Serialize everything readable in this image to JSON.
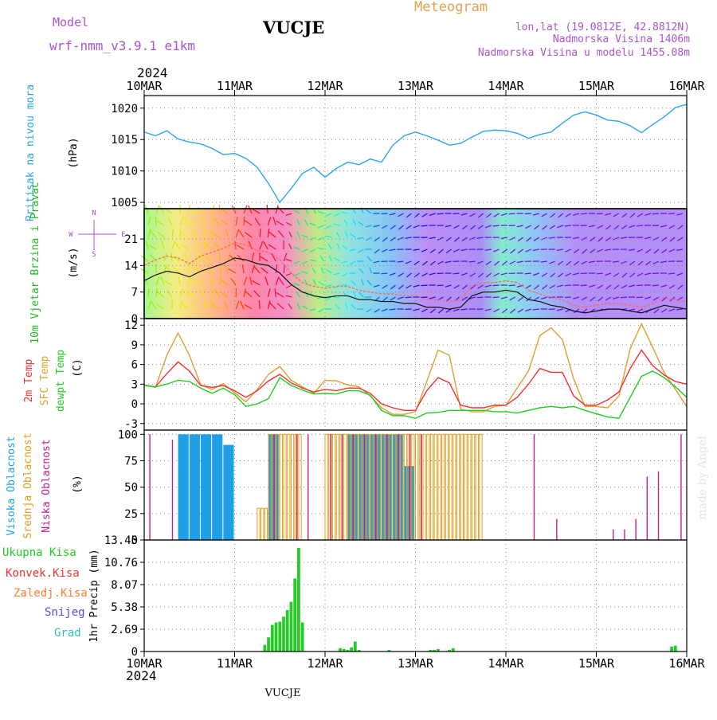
{
  "header": {
    "model_label": "Model",
    "model_name": "wrf-nmm_v3.9.1  e1km",
    "station": "VUCJE",
    "meteogram_label": "Meteogram",
    "lonlat": "lon,lat (19.0812E, 42.8812N)",
    "elevation": "Nadmorska Visina 1406m",
    "model_elevation": "Nadmorska Visina u modelu 1455.08m",
    "year_top": "2024",
    "year_bottom": "2024",
    "footer_station": "VUCJE",
    "credit": "made by Angel"
  },
  "colors": {
    "pressure": "#2aa7e8",
    "temp2m": "#ee3333",
    "sfc": "#dda030",
    "dew": "#22cc22",
    "high_cloud": "#1f9fe6",
    "mid_cloud": "#e0a020",
    "low_cloud": "#c0208a",
    "precip_total": "#22cc22",
    "precip_conv": "#ee3333",
    "precip_large": "#ff8030",
    "snow": "#5050e0",
    "hail": "#30c0c0",
    "model_text": "#aa55cc",
    "meteogram_text": "#e0a050",
    "station_text": "#000000"
  },
  "chart_data": [
    {
      "type": "line",
      "panel": "pressure",
      "ylabel_side": "Pritisak na nivou mora",
      "ylabel_unit": "(hPa)",
      "x_ticks": [
        "10MAR",
        "11MAR",
        "12MAR",
        "13MAR",
        "14MAR",
        "15MAR",
        "16MAR"
      ],
      "y_ticks": [
        1005,
        1010,
        1015,
        1020
      ],
      "ylim": [
        1004,
        1022
      ],
      "grid": true,
      "x_hours": [
        0,
        3,
        6,
        9,
        12,
        15,
        18,
        21,
        24,
        27,
        30,
        33,
        36,
        39,
        42,
        45,
        48,
        51,
        54,
        57,
        60,
        63,
        66,
        69,
        72,
        75,
        78,
        81,
        84,
        87,
        90,
        93,
        96,
        99,
        102,
        105,
        108,
        111,
        114,
        117,
        120,
        123,
        126,
        129,
        132,
        135,
        138,
        141,
        144
      ],
      "series": [
        {
          "values": [
            1016.2,
            1015.6,
            1016.4,
            1015.1,
            1014.6,
            1014.3,
            1013.6,
            1012.6,
            1012.8,
            1012.0,
            1010.6,
            1008.0,
            1005.0,
            1007.2,
            1009.6,
            1010.6,
            1009.0,
            1010.4,
            1011.4,
            1011.0,
            1011.9,
            1011.4,
            1014.1,
            1015.6,
            1016.2,
            1015.6,
            1014.9,
            1014.1,
            1014.4,
            1015.4,
            1016.3,
            1016.5,
            1016.4,
            1016.0,
            1015.2,
            1015.8,
            1016.2,
            1017.6,
            1018.9,
            1019.4,
            1018.9,
            1018.1,
            1017.9,
            1017.2,
            1016.1,
            1017.4,
            1018.6,
            1020.1,
            1020.6
          ]
        }
      ]
    },
    {
      "type": "line",
      "panel": "wind",
      "ylabel_side": "10m Vjetar Brzina i Pravac",
      "ylabel_unit": "(m/s)",
      "compass": [
        "N",
        "E",
        "S",
        "W"
      ],
      "y_ticks": [
        0,
        7,
        14,
        21
      ],
      "ylim": [
        0,
        29
      ],
      "grid": true,
      "x_hours": [
        0,
        3,
        6,
        9,
        12,
        15,
        18,
        21,
        24,
        27,
        30,
        33,
        36,
        39,
        42,
        45,
        48,
        51,
        54,
        57,
        60,
        63,
        66,
        69,
        72,
        75,
        78,
        81,
        84,
        87,
        90,
        93,
        96,
        99,
        102,
        105,
        108,
        111,
        114,
        117,
        120,
        123,
        126,
        129,
        132,
        135,
        138,
        141,
        144
      ],
      "series": [
        {
          "name": "speed",
          "values": [
            10.0,
            11.5,
            12.5,
            12.0,
            11.0,
            12.5,
            13.5,
            14.5,
            16.0,
            15.5,
            14.5,
            14.0,
            12.0,
            9.0,
            7.0,
            6.0,
            5.5,
            6.0,
            6.0,
            5.0,
            5.0,
            4.5,
            4.5,
            4.0,
            4.0,
            3.0,
            3.0,
            2.5,
            3.0,
            6.0,
            7.0,
            7.0,
            7.5,
            7.0,
            5.0,
            4.5,
            3.5,
            3.0,
            2.0,
            1.5,
            2.0,
            2.5,
            2.5,
            2.0,
            1.5,
            2.5,
            3.5,
            3.0,
            2.5
          ]
        },
        {
          "name": "gust",
          "values": [
            14.0,
            15.5,
            16.5,
            16.0,
            14.5,
            16.5,
            17.5,
            18.5,
            20.0,
            19.5,
            18.0,
            17.5,
            15.5,
            12.0,
            9.5,
            8.5,
            8.0,
            8.5,
            8.5,
            7.5,
            7.0,
            6.5,
            6.5,
            6.0,
            6.0,
            5.0,
            5.0,
            4.5,
            5.0,
            8.5,
            9.5,
            9.5,
            10.0,
            9.5,
            7.5,
            6.5,
            5.5,
            5.0,
            3.5,
            3.0,
            3.5,
            4.0,
            4.0,
            3.5,
            3.0,
            4.0,
            5.5,
            5.0,
            4.5
          ]
        }
      ]
    },
    {
      "type": "line",
      "panel": "temperature",
      "ylabel_side": [
        "2m Temp",
        "SFC Temp",
        "dewpt Temp"
      ],
      "ylabel_unit": "(C)",
      "y_ticks": [
        -3,
        0,
        3,
        6,
        9,
        12
      ],
      "ylim": [
        -4,
        13
      ],
      "grid": true,
      "x_hours": [
        0,
        3,
        6,
        9,
        12,
        15,
        18,
        21,
        24,
        27,
        30,
        33,
        36,
        39,
        42,
        45,
        48,
        51,
        54,
        57,
        60,
        63,
        66,
        69,
        72,
        75,
        78,
        81,
        84,
        87,
        90,
        93,
        96,
        99,
        102,
        105,
        108,
        111,
        114,
        117,
        120,
        123,
        126,
        129,
        132,
        135,
        138,
        141,
        144
      ],
      "series": [
        {
          "name": "2m Temp",
          "values": [
            2.8,
            2.6,
            4.6,
            6.4,
            5.0,
            2.8,
            2.5,
            2.8,
            2.0,
            1.0,
            2.0,
            3.5,
            4.5,
            3.2,
            2.4,
            1.8,
            2.2,
            2.0,
            2.4,
            2.4,
            1.6,
            0.0,
            -0.6,
            -1.0,
            -1.0,
            2.0,
            4.0,
            3.2,
            -0.2,
            -0.6,
            -0.6,
            -0.2,
            -0.2,
            1.0,
            3.0,
            5.4,
            4.8,
            4.8,
            1.2,
            -0.2,
            -0.2,
            0.6,
            1.8,
            5.4,
            8.2,
            5.8,
            4.4,
            3.4,
            3.0
          ]
        },
        {
          "name": "SFC Temp",
          "values": [
            2.9,
            2.5,
            7.4,
            10.8,
            7.4,
            2.9,
            2.2,
            3.1,
            1.7,
            0.3,
            2.2,
            4.5,
            5.7,
            3.6,
            2.6,
            1.6,
            3.6,
            3.5,
            2.9,
            2.6,
            1.2,
            -0.6,
            -1.6,
            -1.6,
            -1.2,
            3.4,
            8.2,
            7.4,
            -0.8,
            -1.2,
            -1.2,
            -0.4,
            -0.2,
            2.4,
            5.0,
            10.4,
            11.6,
            9.8,
            3.8,
            -0.4,
            -0.4,
            -0.6,
            1.2,
            8.4,
            12.2,
            8.6,
            4.8,
            2.2,
            -0.4
          ]
        },
        {
          "name": "dewpt Temp",
          "values": [
            2.8,
            2.6,
            3.0,
            3.6,
            3.4,
            2.4,
            1.6,
            2.4,
            1.4,
            -0.4,
            0.0,
            0.8,
            4.0,
            2.8,
            2.1,
            1.5,
            1.6,
            1.5,
            2.0,
            2.0,
            1.3,
            -1.0,
            -1.8,
            -1.8,
            -2.2,
            -1.4,
            -1.3,
            -1.0,
            -1.0,
            -1.0,
            -1.0,
            -1.2,
            -1.2,
            -1.4,
            -1.0,
            -0.6,
            -0.4,
            -0.6,
            -0.4,
            -1.0,
            -1.5,
            -2.0,
            -2.2,
            1.0,
            4.2,
            5.0,
            4.0,
            2.6,
            1.0
          ]
        }
      ]
    },
    {
      "type": "bar",
      "panel": "cloud",
      "ylabel_side": [
        "Visoka Oblacnost",
        "Srednja Oblacnost",
        "Niska Oblacnost"
      ],
      "ylabel_unit": "(%)",
      "y_ticks": [
        0,
        25,
        50,
        75,
        100
      ],
      "ylim": [
        0,
        104
      ],
      "grid": true,
      "x_hours": [
        0,
        3,
        6,
        9,
        12,
        15,
        18,
        21,
        24,
        27,
        30,
        33,
        36,
        39,
        42,
        45,
        48,
        51,
        54,
        57,
        60,
        63,
        66,
        69,
        72,
        75,
        78,
        81,
        84,
        87,
        90,
        93,
        96,
        99,
        102,
        105,
        108,
        111,
        114,
        117,
        120,
        123,
        126,
        129,
        132,
        135,
        138,
        141,
        144
      ],
      "series": [
        {
          "name": "Visoka Oblacnost",
          "values": [
            0,
            0,
            0,
            100,
            100,
            100,
            100,
            90,
            0,
            0,
            0,
            100,
            0,
            0,
            0,
            0,
            0,
            0,
            100,
            100,
            100,
            100,
            100,
            70,
            0,
            0,
            0,
            0,
            0,
            0,
            0,
            0,
            0,
            0,
            0,
            0,
            0,
            0,
            0,
            0,
            0,
            0,
            0,
            0,
            0,
            0,
            0,
            0,
            0
          ]
        },
        {
          "name": "Srednja Oblacnost",
          "values": [
            0,
            0,
            0,
            0,
            0,
            0,
            0,
            0,
            0,
            0,
            30,
            100,
            100,
            100,
            0,
            0,
            100,
            100,
            100,
            100,
            100,
            100,
            100,
            100,
            100,
            100,
            100,
            100,
            100,
            100,
            0,
            0,
            0,
            0,
            0,
            0,
            0,
            0,
            0,
            0,
            0,
            0,
            0,
            0,
            0,
            0,
            0,
            0,
            0
          ]
        },
        {
          "name": "Niska Oblacnost",
          "values": [
            100,
            0,
            95,
            0,
            0,
            0,
            0,
            0,
            0,
            0,
            0,
            100,
            0,
            100,
            100,
            0,
            100,
            100,
            100,
            100,
            100,
            100,
            100,
            100,
            100,
            0,
            0,
            0,
            0,
            0,
            0,
            0,
            0,
            0,
            100,
            0,
            20,
            0,
            0,
            0,
            0,
            10,
            10,
            20,
            60,
            65,
            0,
            100,
            0
          ]
        }
      ]
    },
    {
      "type": "bar",
      "panel": "precipitation",
      "ylabel_side": "1hr Precip (mm)",
      "legend": [
        "Ukupna Kisa",
        "Konvek.Kisa",
        "Zaledj.Kisa",
        "Snijeg",
        "Grad"
      ],
      "y_ticks": [
        0,
        2.69,
        5.38,
        8.07,
        10.76,
        13.45
      ],
      "ylim": [
        0,
        13.45
      ],
      "grid": true,
      "x_ticks": [
        "10MAR",
        "11MAR",
        "12MAR",
        "13MAR",
        "14MAR",
        "15MAR",
        "16MAR"
      ],
      "x_hours": [
        30,
        31,
        32,
        33,
        34,
        35,
        36,
        37,
        38,
        39,
        40,
        41,
        42,
        43,
        44,
        45,
        46,
        47,
        48,
        49,
        50,
        51,
        52,
        53,
        54,
        55,
        56,
        57,
        58,
        59,
        60,
        61,
        62,
        63,
        64,
        65,
        66,
        67,
        68,
        69,
        70,
        71,
        72,
        73,
        74,
        75,
        76,
        77,
        78,
        79,
        80,
        81,
        82,
        83,
        84,
        85,
        86,
        87,
        88,
        89,
        90,
        91,
        92,
        93,
        94,
        95,
        96,
        97,
        98,
        99,
        100,
        101,
        102,
        103,
        104,
        105,
        106,
        107,
        108,
        109,
        110,
        111,
        112,
        113,
        114,
        115,
        116,
        117,
        118,
        119,
        120,
        121,
        122,
        123,
        124,
        125,
        126,
        127,
        128,
        129,
        130,
        131,
        132,
        133,
        134,
        135,
        136,
        137,
        138,
        139,
        140,
        141
      ],
      "series": [
        {
          "name": "Ukupna Kisa",
          "values": [
            0,
            0,
            0.8,
            1.7,
            3.2,
            3.5,
            3.6,
            4.2,
            5.0,
            6.0,
            8.8,
            12.5,
            3.5,
            0,
            0,
            0,
            0,
            0,
            0,
            0,
            0,
            0,
            0.4,
            0.3,
            0.2,
            0.5,
            1.2,
            0.2,
            0,
            0,
            0,
            0,
            0,
            0,
            0,
            0.2,
            0,
            0,
            0,
            0,
            0,
            0,
            0,
            0,
            0,
            0,
            0.2,
            0.2,
            0.3,
            0,
            0,
            0.2,
            0.4,
            0,
            0,
            0,
            0,
            0,
            0,
            0,
            0,
            0,
            0,
            0,
            0,
            0,
            0,
            0,
            0,
            0,
            0,
            0,
            0,
            0,
            0,
            0,
            0,
            0,
            0,
            0,
            0,
            0,
            0,
            0,
            0,
            0,
            0,
            0,
            0,
            0,
            0,
            0,
            0,
            0,
            0,
            0,
            0,
            0,
            0,
            0,
            0,
            0,
            0,
            0,
            0,
            0,
            0,
            0,
            0,
            0,
            0.6,
            0.7
          ]
        }
      ]
    }
  ]
}
